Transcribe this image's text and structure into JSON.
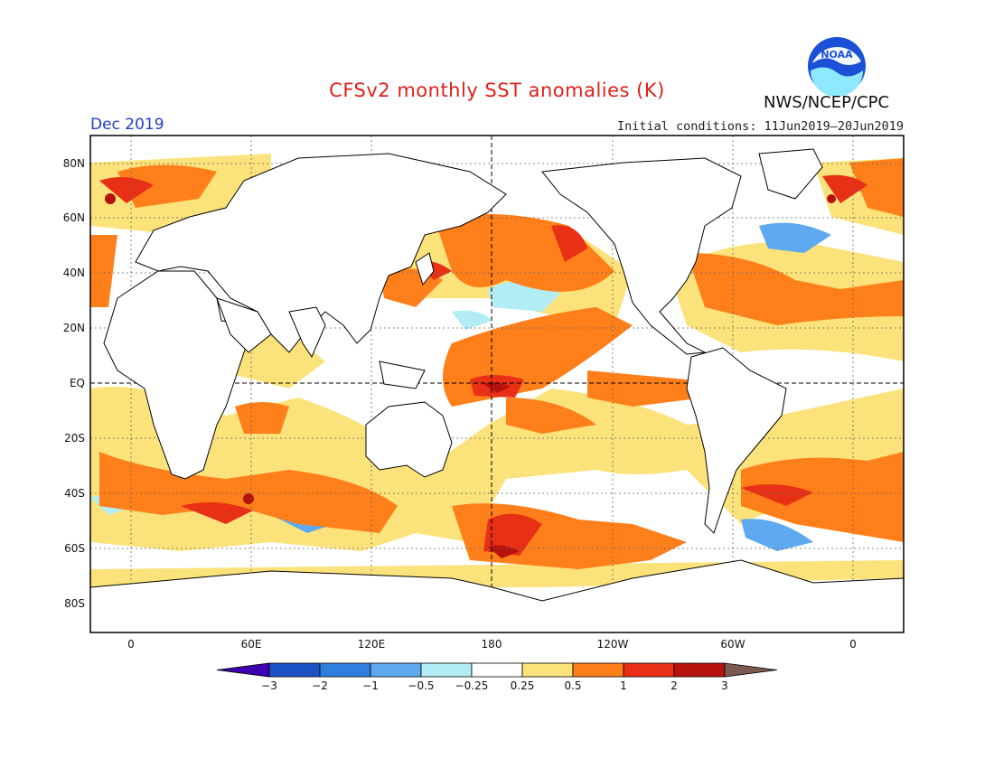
{
  "title": "CFSv2 monthly SST anomalies (K)",
  "agency": "NWS/NCEP/CPC",
  "logo_text": "NOAA",
  "valid_month": "Dec 2019",
  "initial_conditions": "Initial conditions: 11Jun2019–20Jun2019",
  "map": {
    "lat_labels": [
      "80N",
      "60N",
      "40N",
      "20N",
      "EQ",
      "20S",
      "40S",
      "60S",
      "80S"
    ],
    "lon_labels": [
      "0",
      "60E",
      "120E",
      "180",
      "120W",
      "60W",
      "0"
    ]
  },
  "colorbar": {
    "tick_labels": [
      "−3",
      "−2",
      "−1",
      "−0.5",
      "−0.25",
      "0.25",
      "0.5",
      "1",
      "2",
      "3"
    ],
    "colors": [
      "#3e00b0",
      "#1a52c4",
      "#2f7fe0",
      "#5ea9ef",
      "#b2ecf5",
      "#ffffff",
      "#fbe27a",
      "#ff7f1a",
      "#e83016",
      "#b8120e",
      "#7d5a50"
    ]
  }
}
